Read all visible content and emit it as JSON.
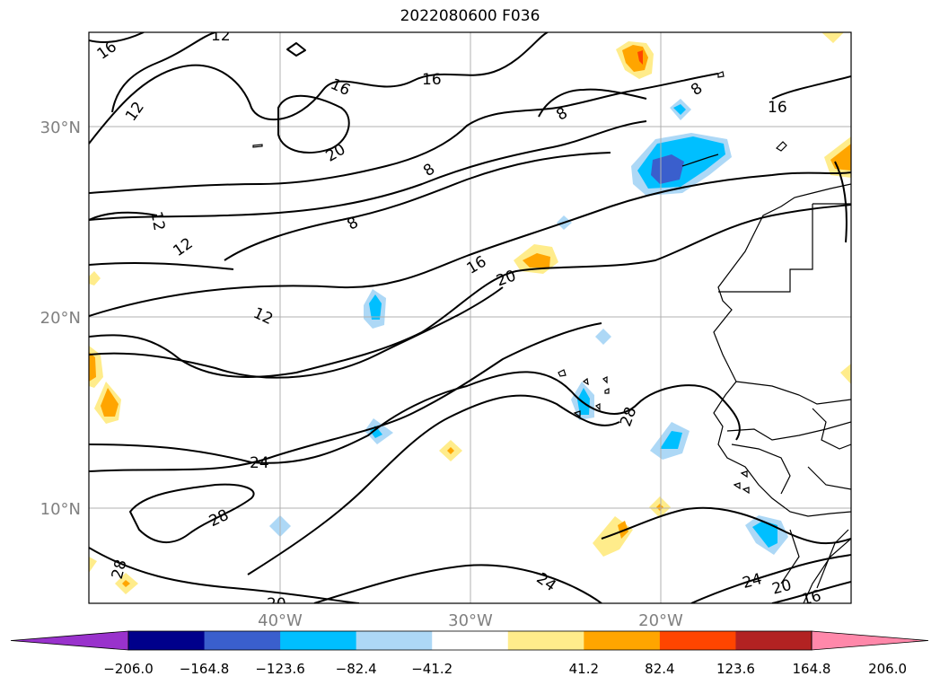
{
  "title": "2022080600 F036",
  "map": {
    "lat_labels": [
      "30°N",
      "20°N",
      "10°N"
    ],
    "lon_labels": [
      "40°W",
      "30°W",
      "20°W"
    ],
    "contour_labels": [
      "16",
      "12",
      "12",
      "16",
      "16",
      "20",
      "8",
      "8",
      "8",
      "12",
      "12",
      "8",
      "16",
      "16",
      "20",
      "12",
      "24",
      "28",
      "28",
      "28",
      "24",
      "24",
      "20",
      "16",
      "20"
    ]
  },
  "colorbar": {
    "tick_labels": [
      "−206.0",
      "−164.8",
      "−123.6",
      "−82.4",
      "−41.2",
      "41.2",
      "82.4",
      "123.6",
      "164.8",
      "206.0"
    ],
    "colors": [
      "#9932cc",
      "#00008b",
      "#3a5fcd",
      "#00bfff",
      "#add8f6",
      "#ffffff",
      "#ffec8b",
      "#ffa500",
      "#ff4500",
      "#b22222",
      "#ff88aa"
    ]
  }
}
